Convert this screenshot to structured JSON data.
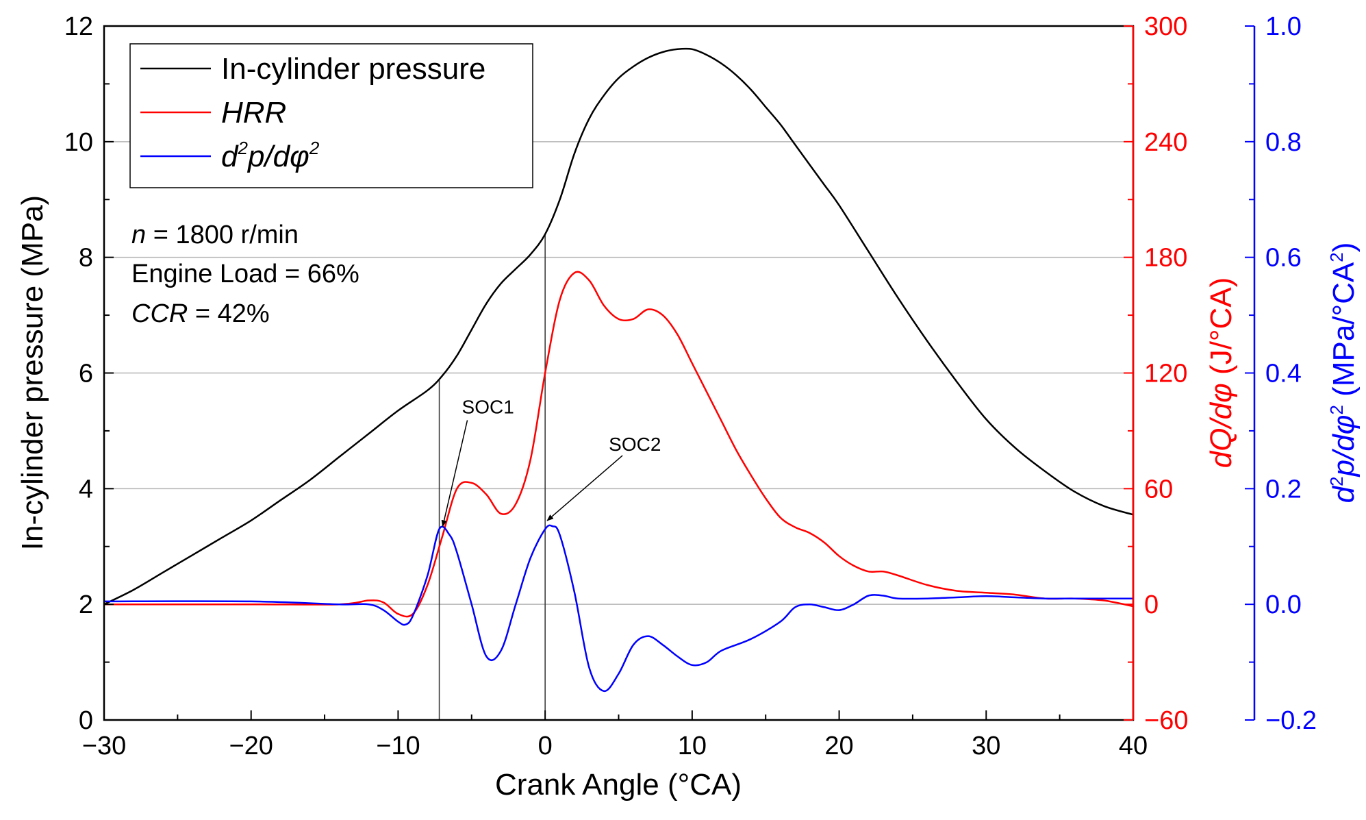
{
  "chart_data": {
    "type": "line",
    "x": {
      "label": "Crank Angle (°CA)",
      "range": [
        -30,
        40
      ],
      "ticks": [
        -30,
        -20,
        -10,
        0,
        10,
        20,
        30,
        40
      ],
      "tick_labels": [
        "−30",
        "−20",
        "−10",
        "0",
        "10",
        "20",
        "30",
        "40"
      ]
    },
    "y_left": {
      "label": "In-cylinder pressure (MPa)",
      "range": [
        0,
        12
      ],
      "ticks": [
        0,
        2,
        4,
        6,
        8,
        10,
        12
      ],
      "tick_labels": [
        "0",
        "2",
        "4",
        "6",
        "8",
        "10",
        "12"
      ],
      "color": "#000000"
    },
    "y_right1": {
      "label_italic": "dQ/dφ",
      "label_rest": " (J/°CA)",
      "range": [
        -60,
        300
      ],
      "ticks": [
        -60,
        0,
        60,
        120,
        180,
        240,
        300
      ],
      "tick_labels": [
        "−60",
        "0",
        "60",
        "120",
        "180",
        "240",
        "300"
      ],
      "color": "#ff0000"
    },
    "y_right2": {
      "label_d": "d",
      "label_sup1": "2",
      "label_mid": "p/dφ",
      "label_sup2": "2",
      "label_unit": " (MPa/°CA",
      "label_sup3": "2",
      "label_close": ")",
      "range": [
        -0.2,
        1.0
      ],
      "ticks": [
        -0.2,
        0.0,
        0.2,
        0.4,
        0.6,
        0.8,
        1.0
      ],
      "tick_labels": [
        "−0.2",
        "0.0",
        "0.2",
        "0.4",
        "0.6",
        "0.8",
        "1.0"
      ],
      "color": "#0000ff"
    },
    "gridlines": "horizontal",
    "legend": {
      "position": "top-left",
      "entries": [
        {
          "label": "In-cylinder pressure",
          "color": "#000000",
          "italic": false
        },
        {
          "label": "HRR",
          "color": "#ff0000",
          "italic": true
        },
        {
          "label_d": "d",
          "label_sup1": "2",
          "label_mid": "p/dφ",
          "label_sup2": "2",
          "color": "#0000ff",
          "italic": true
        }
      ]
    },
    "conditions": {
      "speed_var": "n",
      "speed_rest": " = 1800 r/min",
      "load": "Engine Load = 66%",
      "ccr_var": "CCR",
      "ccr_rest": " = 42%"
    },
    "annotations": [
      {
        "label": "SOC1",
        "x": -7.2,
        "y2": 0.13
      },
      {
        "label": "SOC2",
        "x": 0.0,
        "y2": 0.14
      }
    ],
    "vertical_markers": [
      -7.2,
      0.0
    ],
    "series": [
      {
        "name": "In-cylinder pressure",
        "axis": "y_left",
        "color": "#000000",
        "x": [
          -30,
          -28,
          -26,
          -24,
          -22,
          -20,
          -18,
          -16,
          -14,
          -12,
          -10,
          -8,
          -7,
          -6,
          -5,
          -4,
          -3,
          -2,
          -1,
          0,
          1,
          2,
          3,
          4,
          5,
          6,
          7,
          8,
          9,
          10,
          11,
          12,
          13,
          14,
          15,
          16,
          17,
          18,
          19,
          20,
          22,
          24,
          26,
          28,
          30,
          32,
          34,
          36,
          38,
          40
        ],
        "y": [
          2.0,
          2.25,
          2.55,
          2.85,
          3.15,
          3.45,
          3.8,
          4.15,
          4.55,
          4.95,
          5.35,
          5.7,
          5.95,
          6.3,
          6.75,
          7.2,
          7.55,
          7.8,
          8.05,
          8.4,
          9.0,
          9.8,
          10.4,
          10.8,
          11.1,
          11.3,
          11.45,
          11.55,
          11.6,
          11.6,
          11.5,
          11.35,
          11.15,
          10.9,
          10.6,
          10.3,
          9.95,
          9.6,
          9.25,
          8.9,
          8.1,
          7.3,
          6.55,
          5.85,
          5.2,
          4.7,
          4.3,
          3.95,
          3.7,
          3.55
        ]
      },
      {
        "name": "HRR",
        "axis": "y_right1",
        "color": "#ff0000",
        "x": [
          -30,
          -20,
          -14,
          -12,
          -11,
          -10,
          -9,
          -8,
          -7,
          -6,
          -5,
          -4,
          -3,
          -2,
          -1,
          0,
          1,
          2,
          3,
          4,
          5,
          6,
          7,
          8,
          9,
          10,
          11,
          12,
          13,
          14,
          15,
          16,
          17,
          18,
          19,
          20,
          21,
          22,
          23,
          24,
          26,
          28,
          30,
          32,
          34,
          36,
          38,
          40
        ],
        "y": [
          0,
          0,
          0,
          2,
          1,
          -5,
          -5,
          10,
          35,
          60,
          63,
          57,
          47,
          52,
          75,
          120,
          158,
          172,
          168,
          155,
          148,
          148,
          153,
          150,
          140,
          125,
          110,
          95,
          80,
          67,
          55,
          45,
          40,
          37,
          32,
          25,
          20,
          17,
          17,
          15,
          10,
          7,
          6,
          5,
          3,
          3,
          2,
          -1
        ]
      },
      {
        "name": "d2p/dphi2",
        "axis": "y_right2",
        "color": "#0000ff",
        "x": [
          -30,
          -20,
          -14,
          -12,
          -11,
          -10,
          -9.5,
          -9,
          -8,
          -7.2,
          -6.5,
          -6,
          -5,
          -4,
          -3,
          -2,
          -1,
          0,
          0.5,
          1,
          2,
          3,
          4,
          5,
          6,
          7,
          8,
          9,
          10,
          11,
          12,
          14,
          16,
          17,
          18,
          19,
          20,
          21,
          22,
          23,
          24,
          26,
          28,
          30,
          32,
          34,
          36,
          38,
          40
        ],
        "y": [
          0.005,
          0.005,
          0.0,
          0.0,
          -0.01,
          -0.03,
          -0.035,
          -0.02,
          0.05,
          0.13,
          0.12,
          0.09,
          0.0,
          -0.09,
          -0.08,
          0.0,
          0.08,
          0.13,
          0.135,
          0.12,
          0.02,
          -0.11,
          -0.15,
          -0.12,
          -0.07,
          -0.055,
          -0.07,
          -0.09,
          -0.105,
          -0.1,
          -0.08,
          -0.06,
          -0.03,
          -0.005,
          0.0,
          -0.005,
          -0.01,
          0.0,
          0.015,
          0.015,
          0.01,
          0.01,
          0.012,
          0.014,
          0.012,
          0.01,
          0.01,
          0.01,
          0.01
        ]
      }
    ]
  }
}
